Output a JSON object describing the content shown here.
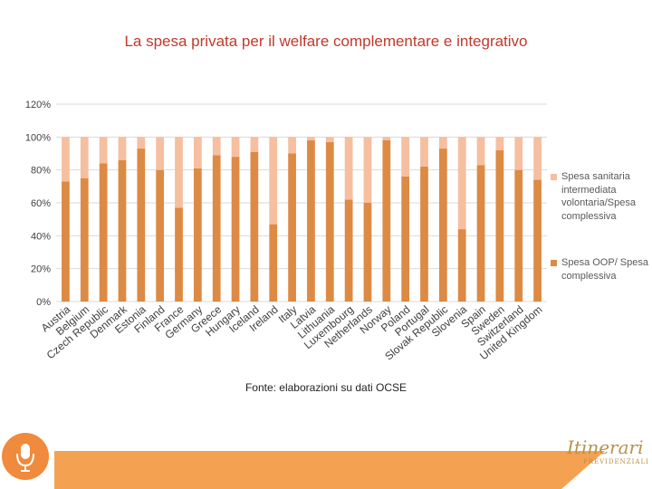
{
  "title": "La spesa privata per il welfare complementare e integrativo",
  "source_note": "Fonte: elaborazioni su dati OCSE",
  "colors": {
    "title": "#c0392b",
    "oop": "#dd8a44",
    "vol": "#f5bfa0",
    "footer_bar": "#f4a251",
    "footer_circle": "#f08a3c",
    "gridline": "#d9d9d9"
  },
  "footer": {
    "mic_icon": "microphone-icon",
    "logo_text": "Itinerari",
    "logo_subtext": "PREVIDENZIALI"
  },
  "chart_data": {
    "type": "bar",
    "stacked": true,
    "title": "La spesa privata per il welfare complementare e integrativo",
    "xlabel": "",
    "ylabel": "",
    "ylim": [
      0,
      120
    ],
    "y_ticks": [
      "0%",
      "20%",
      "40%",
      "60%",
      "80%",
      "100%",
      "120%"
    ],
    "grid": true,
    "legend_position": "right",
    "categories": [
      "Austria",
      "Belgium",
      "Czech Republic",
      "Denmark",
      "Estonia",
      "Finland",
      "France",
      "Germany",
      "Greece",
      "Hungary",
      "Iceland",
      "Ireland",
      "Italy",
      "Latvia",
      "Lithuania",
      "Luxembourg",
      "Netherlands",
      "Norway",
      "Poland",
      "Portugal",
      "Slovak Republic",
      "Slovenia",
      "Spain",
      "Sweden",
      "Switzerland",
      "United Kingdom"
    ],
    "series": [
      {
        "name": "Spesa OOP/ Spesa complessiva",
        "color": "#dd8a44",
        "values": [
          73,
          75,
          84,
          86,
          93,
          80,
          57,
          81,
          89,
          88,
          91,
          47,
          90,
          98,
          97,
          62,
          60,
          98,
          76,
          82,
          93,
          44,
          83,
          92,
          80,
          74
        ]
      },
      {
        "name": "Spesa sanitaria intermediata volontaria/Spesa complessiva",
        "color": "#f5bfa0",
        "values": [
          27,
          25,
          16,
          14,
          7,
          20,
          43,
          19,
          11,
          12,
          9,
          53,
          10,
          2,
          3,
          38,
          40,
          2,
          24,
          18,
          7,
          56,
          17,
          8,
          20,
          26
        ]
      }
    ]
  }
}
